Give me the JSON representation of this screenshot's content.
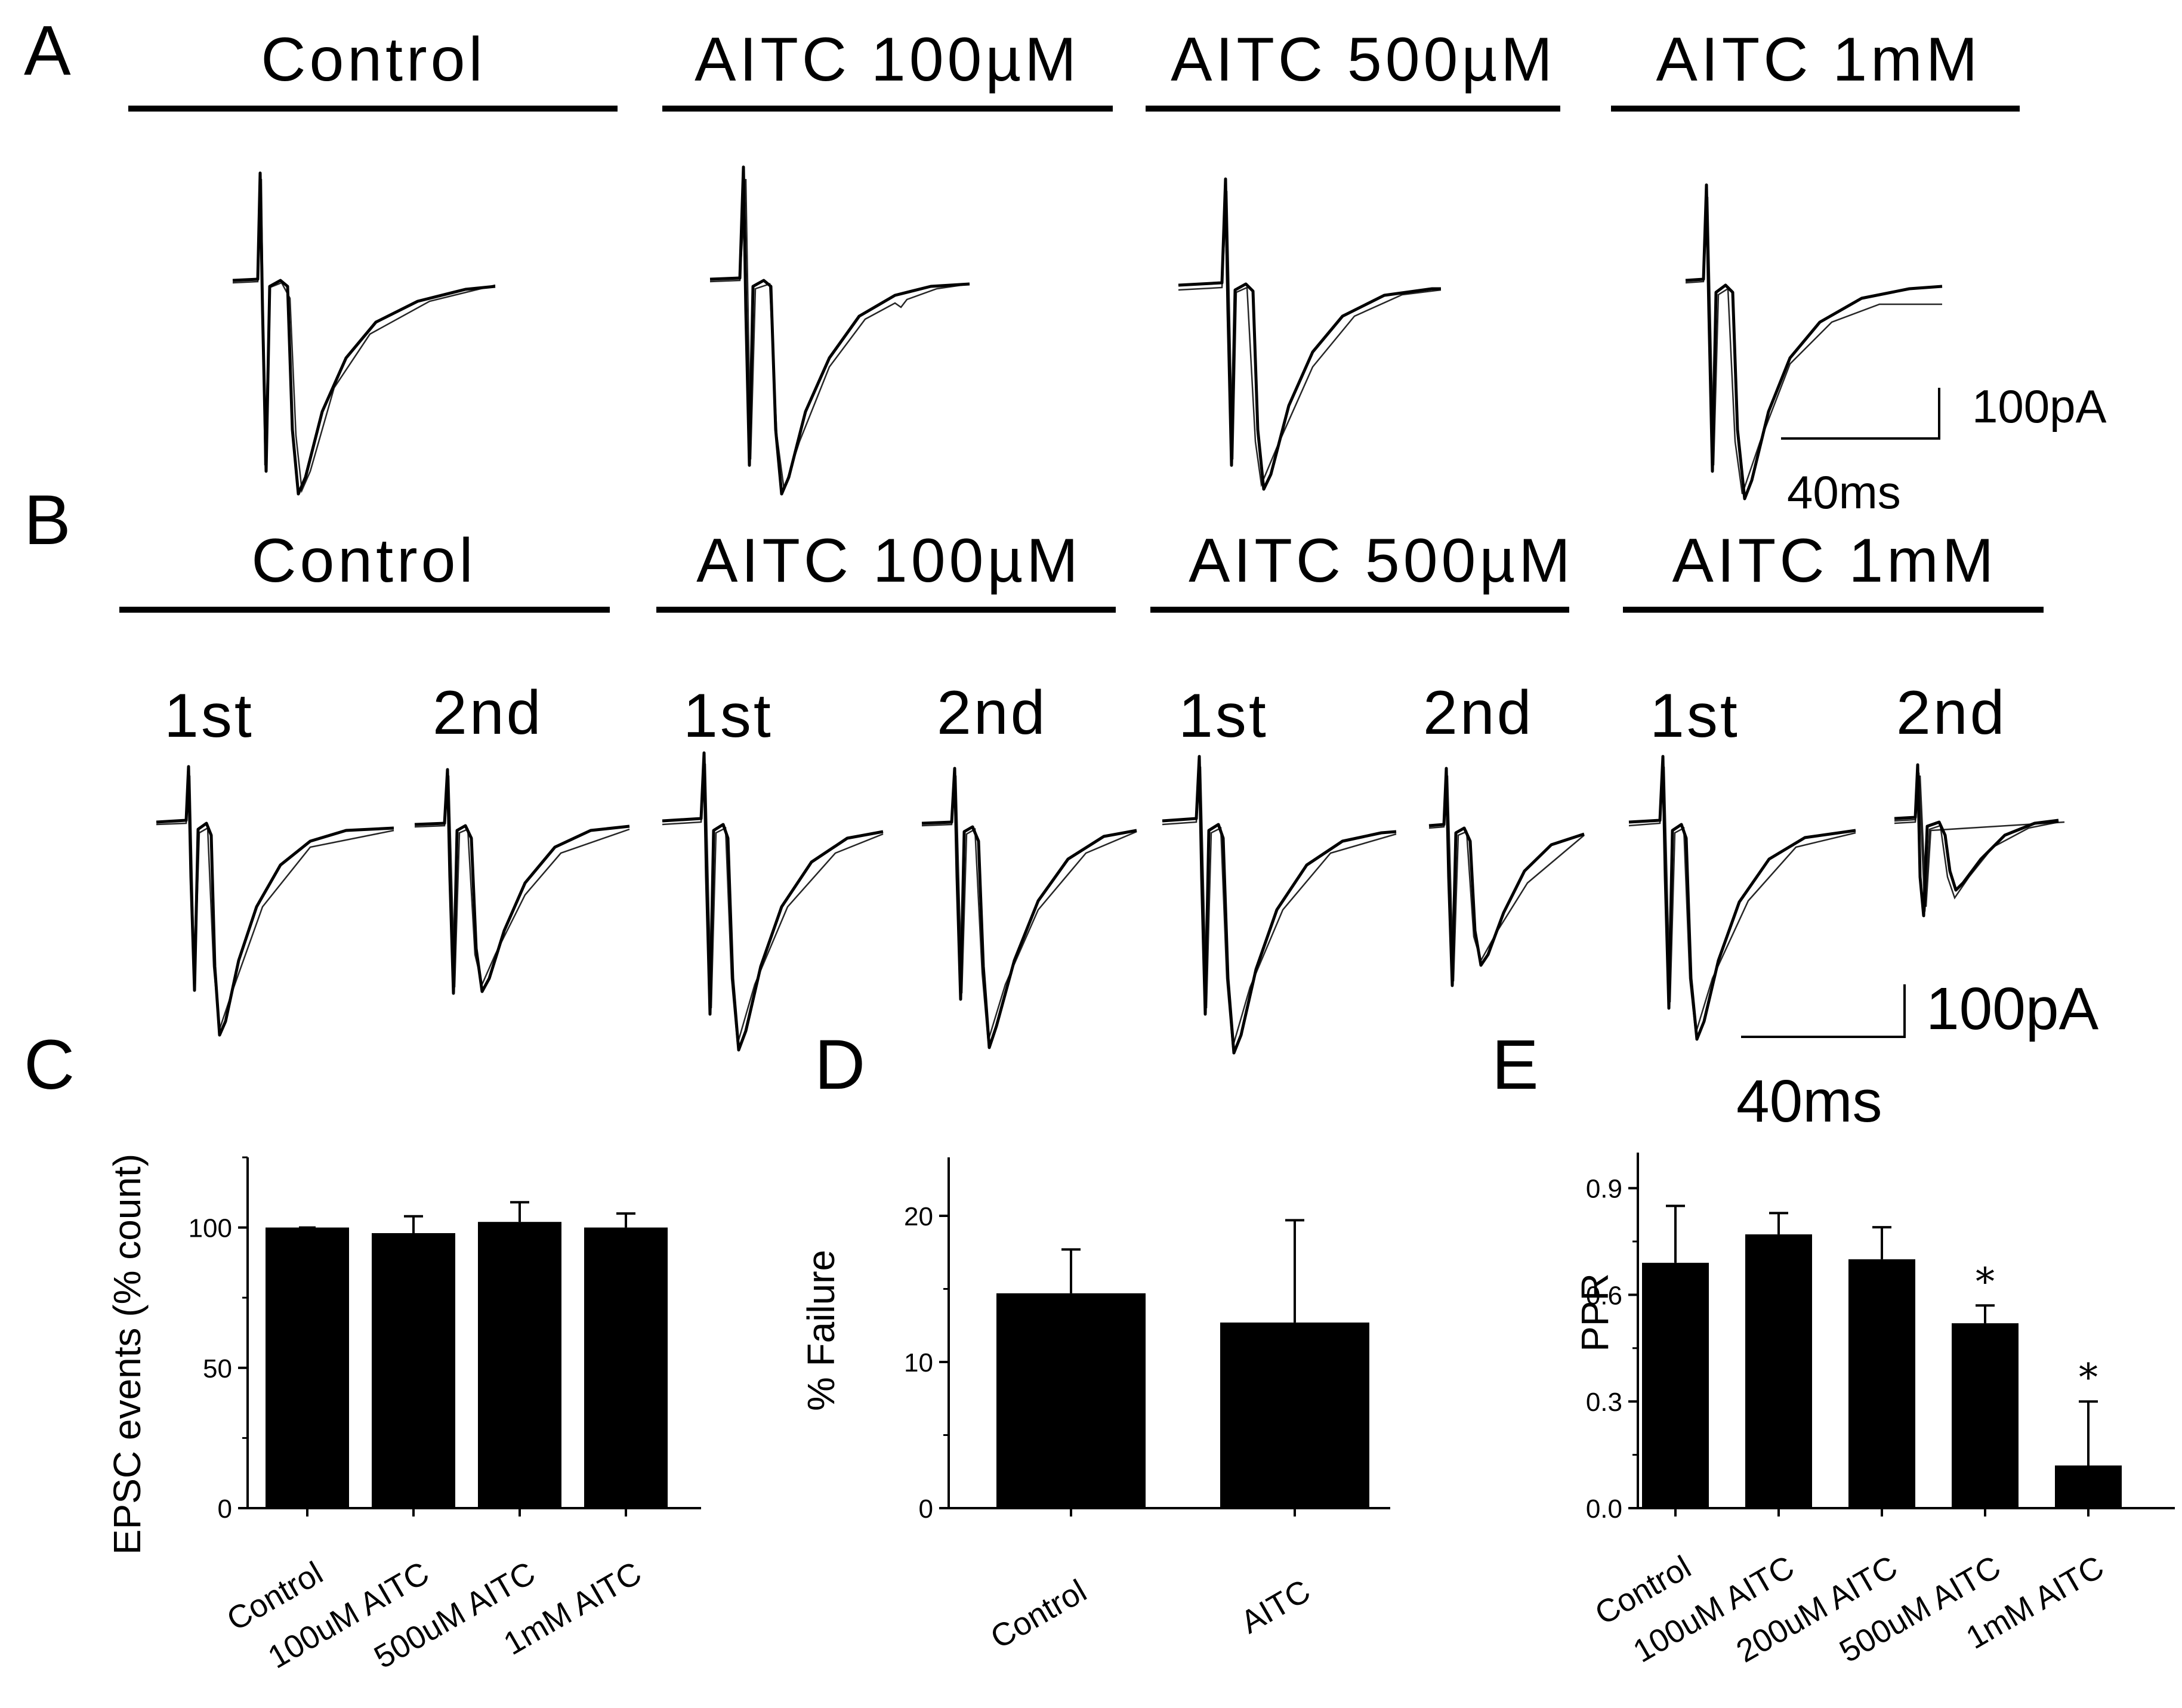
{
  "panel_labels": {
    "A": "A",
    "B": "B",
    "C": "C",
    "D": "D",
    "E": "E"
  },
  "conditions": [
    "Control",
    "AITC  100µM",
    "AITC  500µM",
    "AITC  1mM"
  ],
  "pulse_labels": {
    "first": "1st",
    "second": "2nd"
  },
  "scale_bars": {
    "A": {
      "current": "100pA",
      "time": "40ms"
    },
    "B": {
      "current": "100pA",
      "time": "40ms"
    }
  },
  "chart_data": [
    {
      "panel": "C",
      "type": "bar",
      "categories": [
        "Control",
        "100uM AITC",
        "500uM AITC",
        "1mM AITC"
      ],
      "values": [
        100,
        98,
        102,
        100
      ],
      "errors": [
        0,
        6,
        7,
        5
      ],
      "ylabel": "EPSC events  (% count)",
      "ylim": [
        0,
        125
      ],
      "yticks": [
        0,
        50,
        100
      ],
      "ytick_labels": [
        "0",
        "50",
        "100"
      ]
    },
    {
      "panel": "D",
      "type": "bar",
      "categories": [
        "Control",
        "AITC"
      ],
      "values": [
        14.7,
        12.7
      ],
      "errors": [
        3.0,
        7.0
      ],
      "ylabel": "% Failure",
      "ylim": [
        0,
        24
      ],
      "yticks": [
        0,
        10,
        20
      ],
      "ytick_labels": [
        "0",
        "10",
        "20"
      ]
    },
    {
      "panel": "E",
      "type": "bar",
      "categories": [
        "Control",
        "100uM AITC",
        "200uM AITC",
        "500uM AITC",
        "1mM AITC"
      ],
      "values": [
        0.69,
        0.77,
        0.7,
        0.52,
        0.12
      ],
      "errors": [
        0.16,
        0.06,
        0.09,
        0.05,
        0.18
      ],
      "significance": [
        "",
        "",
        "",
        "*",
        "*"
      ],
      "ylabel": "PPR",
      "ylim": [
        0,
        1.0
      ],
      "yticks": [
        0.0,
        0.3,
        0.6,
        0.9
      ],
      "ytick_labels": [
        "0.0",
        "0.3",
        "0.6",
        "0.9"
      ]
    }
  ]
}
